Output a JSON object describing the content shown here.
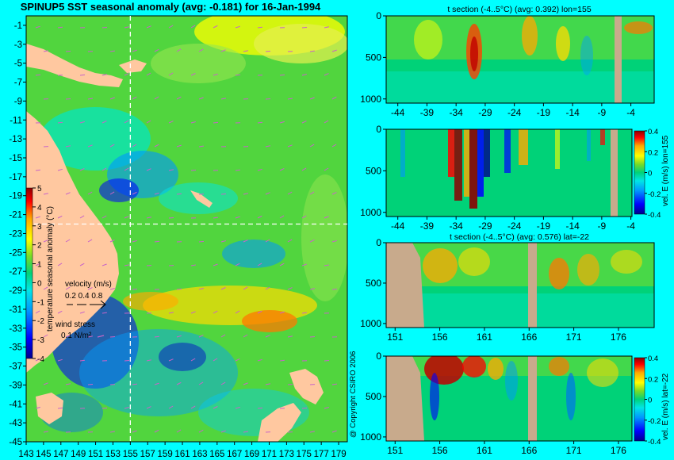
{
  "chart_data": [
    {
      "type": "heatmap",
      "title": "SPINUP5 SST seasonal anomaly (avg: -0.181) for 16-Jan-1994",
      "x_ticks": [
        "143",
        "145",
        "147",
        "149",
        "151",
        "153",
        "155",
        "157",
        "159",
        "161",
        "163",
        "165",
        "167",
        "169",
        "171",
        "173",
        "175",
        "177",
        "179"
      ],
      "y_ticks": [
        "-1",
        "-3",
        "-5",
        "-7",
        "-9",
        "-11",
        "-13",
        "-15",
        "-17",
        "-19",
        "-21",
        "-23",
        "-25",
        "-27",
        "-29",
        "-31",
        "-33",
        "-35",
        "-37",
        "-39",
        "-41",
        "-43",
        "-45"
      ],
      "xlim": [
        143,
        180
      ],
      "ylim": [
        -45,
        0
      ],
      "colorbar": {
        "label": "temperature seasonal anomaly (°C)",
        "ticks": [
          "5",
          "4",
          "3",
          "2",
          "1",
          "0",
          "-1",
          "-2",
          "-3",
          "-4"
        ],
        "range": [
          -4,
          5
        ]
      },
      "velocity_key": {
        "label": "velocity (m/s)",
        "values": "0.2 0.4 0.8"
      },
      "wind_key": {
        "label": "wind stress",
        "value": "0.1 N/m²"
      },
      "crosshair": {
        "lon": 155,
        "lat": -22
      },
      "copyright": "@ Copyright CSIRO 2006"
    },
    {
      "type": "heatmap",
      "title": "t section (-4..5°C) (avg: 0.392) lon=155",
      "x_ticks": [
        "-44",
        "-39",
        "-34",
        "-29",
        "-24",
        "-19",
        "-14",
        "-9",
        "-4"
      ],
      "y_ticks": [
        "0",
        "500",
        "1000"
      ],
      "xlim": [
        -46,
        0
      ],
      "ylim": [
        0,
        1050
      ]
    },
    {
      "type": "heatmap",
      "title": "",
      "x_ticks": [
        "-44",
        "-39",
        "-34",
        "-29",
        "-24",
        "-19",
        "-14",
        "-9",
        "-4"
      ],
      "y_ticks": [
        "0",
        "500",
        "1000"
      ],
      "xlim": [
        -46,
        0
      ],
      "ylim": [
        0,
        1050
      ],
      "colorbar": {
        "label": "vel. E (m/s) lon=155",
        "ticks": [
          "0.4",
          "0.2",
          "0",
          "-0.2",
          "-0.4"
        ],
        "range": [
          -0.4,
          0.4
        ]
      }
    },
    {
      "type": "heatmap",
      "title": "t section (-4..5°C) (avg: 0.576) lat=-22",
      "x_ticks": [
        "151",
        "156",
        "161",
        "166",
        "171",
        "176"
      ],
      "y_ticks": [
        "0",
        "500",
        "1000"
      ],
      "xlim": [
        150,
        180
      ],
      "ylim": [
        0,
        1050
      ]
    },
    {
      "type": "heatmap",
      "title": "",
      "x_ticks": [
        "151",
        "156",
        "161",
        "166",
        "171",
        "176"
      ],
      "y_ticks": [
        "0",
        "500",
        "1000"
      ],
      "xlim": [
        150,
        180
      ],
      "ylim": [
        0,
        1050
      ],
      "colorbar": {
        "label": "vel. E (m/s) lat=-22",
        "ticks": [
          "0.4",
          "0.2",
          "0",
          "-0.2",
          "-0.4"
        ],
        "range": [
          -0.4,
          0.4
        ]
      }
    }
  ],
  "colors": {
    "background": "#00ffff",
    "land": "#ffc8a0",
    "section_land": "#c8aa8c",
    "crosshair": "#ffffff",
    "ramp": [
      "#00008c",
      "#0000ff",
      "#0096ff",
      "#00e6e6",
      "#00d278",
      "#78dc28",
      "#ffff00",
      "#ffaa00",
      "#ff0000",
      "#8c0000"
    ]
  }
}
